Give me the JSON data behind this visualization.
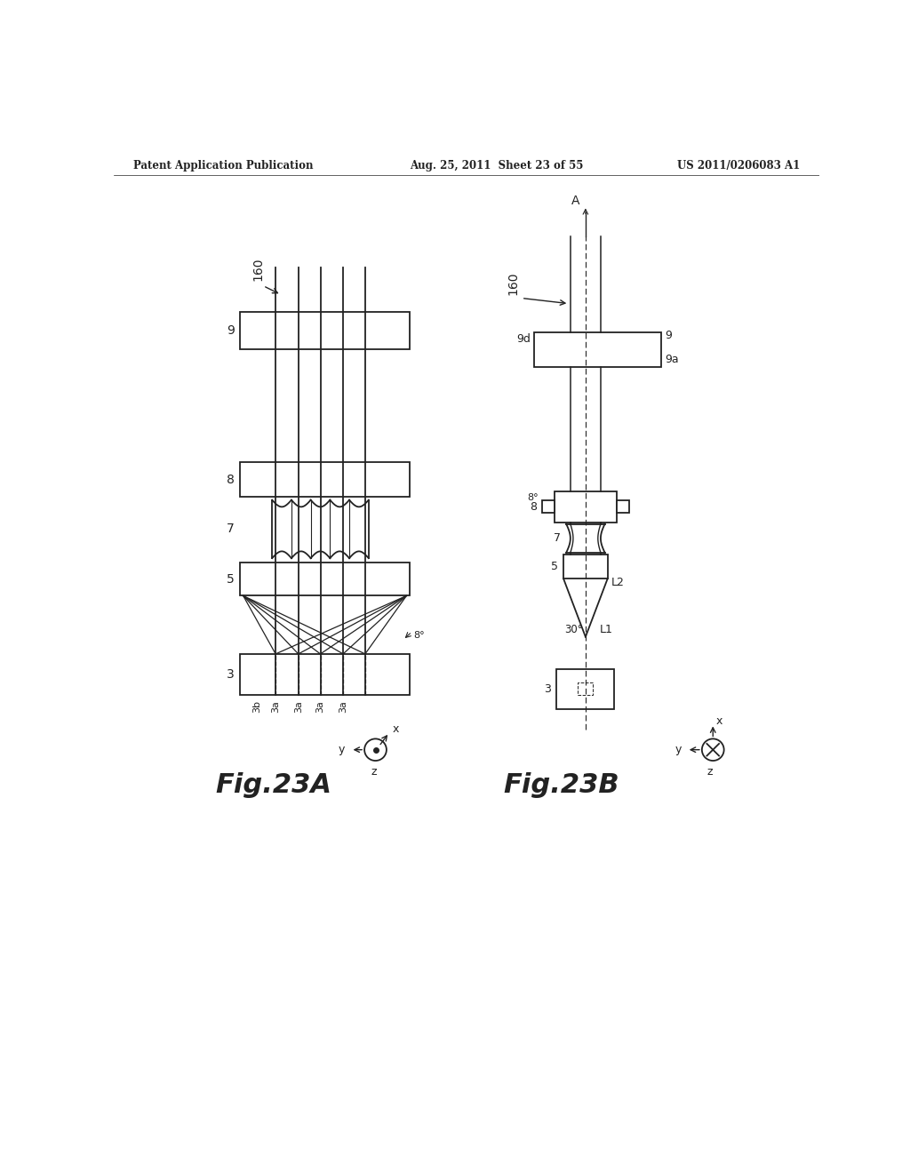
{
  "bg_color": "#ffffff",
  "header_left": "Patent Application Publication",
  "header_mid": "Aug. 25, 2011  Sheet 23 of 55",
  "header_right": "US 2011/0206083 A1",
  "fig23A_label": "Fig.23A",
  "fig23B_label": "Fig.23B",
  "lc": "#222222"
}
